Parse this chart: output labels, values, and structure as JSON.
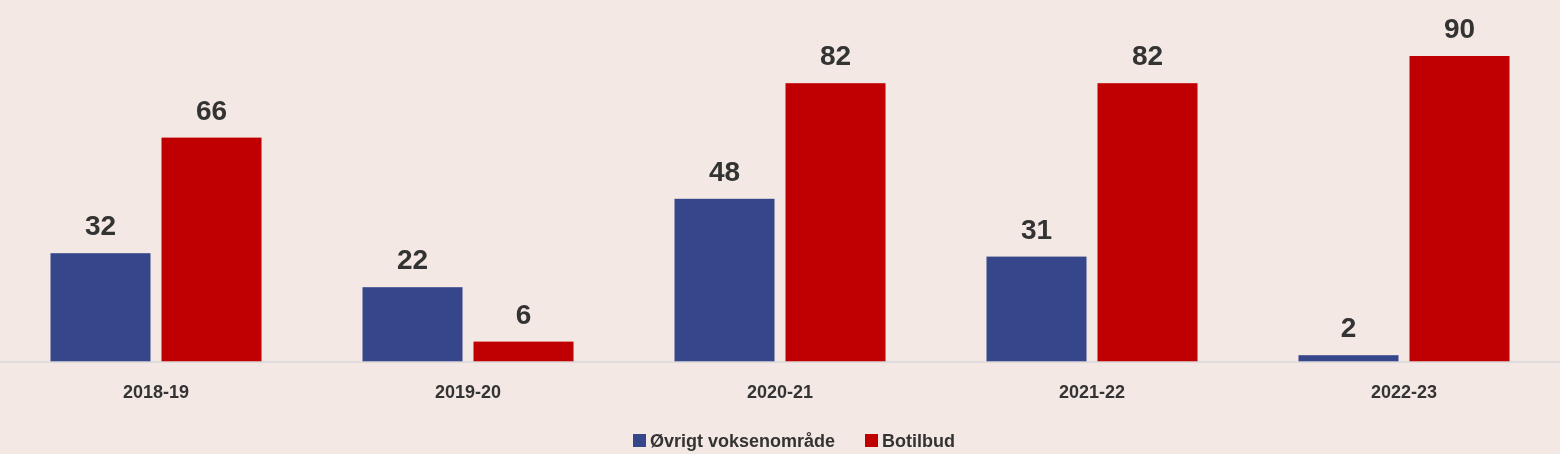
{
  "chart_data": {
    "type": "bar",
    "categories": [
      "2018-19",
      "2019-20",
      "2020-21",
      "2021-22",
      "2022-23"
    ],
    "series": [
      {
        "name": "Øvrigt voksenområde",
        "color": "#36468a",
        "values": [
          32,
          22,
          48,
          31,
          2
        ]
      },
      {
        "name": "Botilbud",
        "color": "#c00000",
        "values": [
          66,
          6,
          82,
          82,
          90
        ]
      }
    ],
    "data_labels": true,
    "legend": "bottom",
    "grid": false
  }
}
